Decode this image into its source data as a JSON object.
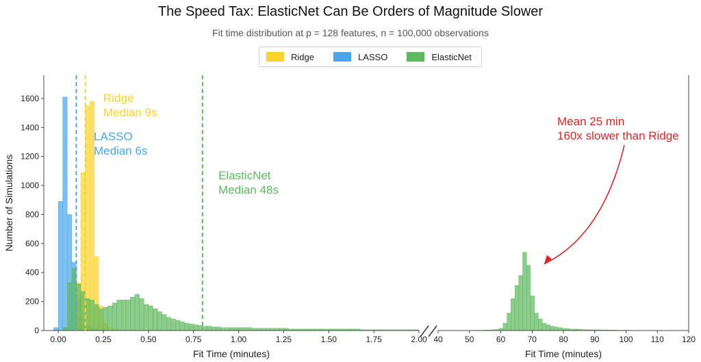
{
  "title": "The Speed Tax: ElasticNet Can Be Orders of Magnitude Slower",
  "subtitle": "Fit time distribution at p = 128 features, n = 100,000 observations",
  "colors": {
    "Ridge": "#f9d42c",
    "LASSO": "#4aa6ea",
    "ElasticNet": "#5fb85f",
    "arrow": "#d62728"
  },
  "legend": [
    {
      "name": "Ridge",
      "color": "#f9d42c"
    },
    {
      "name": "LASSO",
      "color": "#4aa6ea"
    },
    {
      "name": "ElasticNet",
      "color": "#5fb85f"
    }
  ],
  "chart_data": [
    {
      "type": "bar",
      "panel": "left",
      "xlabel": "Fit Time (minutes)",
      "ylabel": "Number of Simulations",
      "xlim": [
        -0.08,
        2.0
      ],
      "ylim": [
        0,
        1760
      ],
      "xticks": [
        "0.00",
        "0.25",
        "0.50",
        "0.75",
        "1.00",
        "1.25",
        "1.50",
        "1.75",
        "2.00"
      ],
      "yticks": [
        "0",
        "200",
        "400",
        "600",
        "800",
        "1000",
        "1200",
        "1400",
        "1600"
      ],
      "bin_width": 0.025,
      "series": [
        {
          "name": "LASSO",
          "bin_start": -0.025,
          "values": [
            20,
            890,
            1610,
            800,
            470,
            220,
            100,
            40,
            20,
            10,
            5,
            5,
            3,
            2,
            2,
            1,
            1,
            1,
            1,
            1
          ]
        },
        {
          "name": "Ridge",
          "bin_start": 0.1,
          "values": [
            330,
            1090,
            1550,
            1580,
            510,
            170,
            50,
            20,
            10,
            5
          ]
        },
        {
          "name": "ElasticNet",
          "bin_start": 0.025,
          "values": [
            20,
            330,
            430,
            320,
            270,
            220,
            210,
            180,
            150,
            160,
            170,
            190,
            210,
            210,
            210,
            230,
            250,
            220,
            180,
            170,
            150,
            130,
            110,
            90,
            80,
            70,
            60,
            50,
            45,
            40,
            35,
            30,
            30,
            25,
            25,
            20,
            20,
            20,
            20,
            20,
            20,
            20,
            15,
            15,
            15,
            15,
            15,
            15,
            15,
            15,
            10,
            10,
            10,
            10,
            10,
            10,
            10,
            10,
            10,
            10,
            10,
            10,
            10,
            10,
            10,
            10,
            5,
            5,
            5,
            5,
            5,
            5,
            5,
            5,
            5,
            5,
            5,
            5,
            5
          ]
        }
      ],
      "medians": [
        {
          "name": "LASSO",
          "x": 0.1,
          "label": [
            "LASSO",
            "Median 6s"
          ]
        },
        {
          "name": "Ridge",
          "x": 0.15,
          "label": [
            "Ridge",
            "Median 9s"
          ]
        },
        {
          "name": "ElasticNet",
          "x": 0.8,
          "label": [
            "ElasticNet",
            "Median 48s"
          ]
        }
      ]
    },
    {
      "type": "bar",
      "panel": "right",
      "xlabel": "Fit Time (minutes)",
      "xlim": [
        40,
        120
      ],
      "ylim": [
        0,
        1760
      ],
      "xticks": [
        "40",
        "50",
        "60",
        "70",
        "80",
        "90",
        "100",
        "110",
        "120"
      ],
      "bin_width": 1.25,
      "series": [
        {
          "name": "ElasticNet",
          "bin_start": 42,
          "values": [
            1,
            1,
            1,
            1,
            1,
            1,
            1,
            2,
            2,
            2,
            3,
            3,
            5,
            8,
            15,
            50,
            120,
            220,
            310,
            380,
            540,
            450,
            240,
            120,
            80,
            50,
            40,
            30,
            25,
            20,
            15,
            12,
            10,
            10,
            8,
            6,
            6,
            5,
            5,
            5,
            4,
            4,
            3,
            3,
            2,
            2,
            2,
            1
          ]
        }
      ],
      "annotation": {
        "lines": [
          "Mean 25 min",
          "160x slower than Ridge"
        ],
        "target_x": 73,
        "target_y": 450
      }
    }
  ]
}
